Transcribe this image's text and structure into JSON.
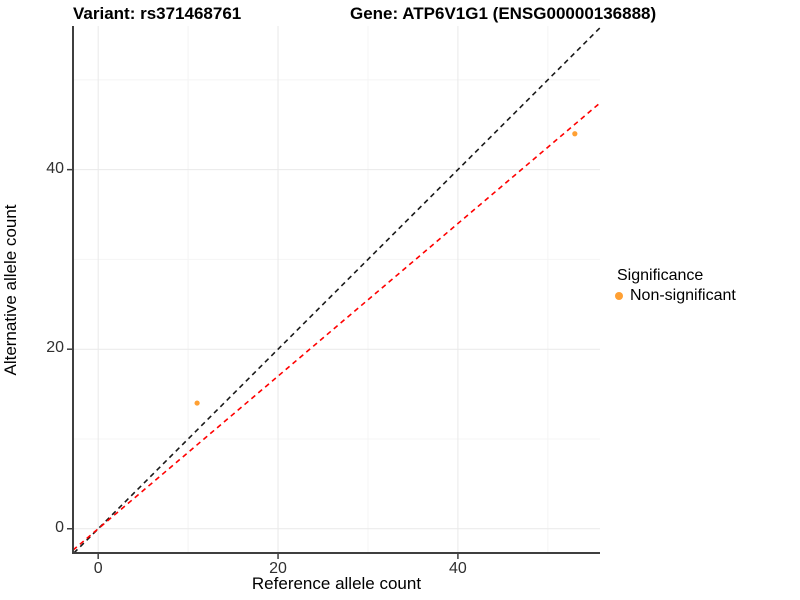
{
  "titles": {
    "variant": "Variant: rs371468761",
    "gene": "Gene: ATP6V1G1 (ENSG00000136888)"
  },
  "axes": {
    "x_label": "Reference allele count",
    "y_label": "Alternative allele count"
  },
  "legend": {
    "title": "Significance",
    "items": [
      {
        "label": "Non-significant",
        "color": "#FFA033"
      }
    ]
  },
  "colors": {
    "background": "#FFFFFF",
    "axis_line": "#3f3f3f",
    "grid_major": "#e9e9e9",
    "grid_minor": "#f4f4f4",
    "tick_label": "#303030",
    "identity_line": "#1a1a1a",
    "regression_line": "#ff0000",
    "point": "#FFA033"
  },
  "chart_data": {
    "type": "scatter",
    "title": "Variant: rs371468761   Gene: ATP6V1G1 (ENSG00000136888)",
    "xlabel": "Reference allele count",
    "ylabel": "Alternative allele count",
    "xlim": [
      -2.8,
      55.8
    ],
    "ylim": [
      -2.7,
      56.0
    ],
    "x_ticks": [
      0,
      20,
      40
    ],
    "y_ticks": [
      0,
      20,
      40
    ],
    "x_minor_ticks": [
      10,
      30,
      50
    ],
    "y_minor_ticks": [
      10,
      30,
      50
    ],
    "grid": true,
    "legend_position": "right",
    "series": [
      {
        "name": "Non-significant",
        "color": "#FFA033",
        "points": [
          {
            "x": 11,
            "y": 14
          },
          {
            "x": 53,
            "y": 44
          }
        ]
      }
    ],
    "ref_lines": [
      {
        "name": "identity",
        "slope": 1.0,
        "intercept": 0,
        "color": "#1a1a1a",
        "style": "dashed"
      },
      {
        "name": "regression",
        "slope": 0.85,
        "intercept": 0,
        "color": "#ff0000",
        "style": "dashed"
      }
    ]
  }
}
